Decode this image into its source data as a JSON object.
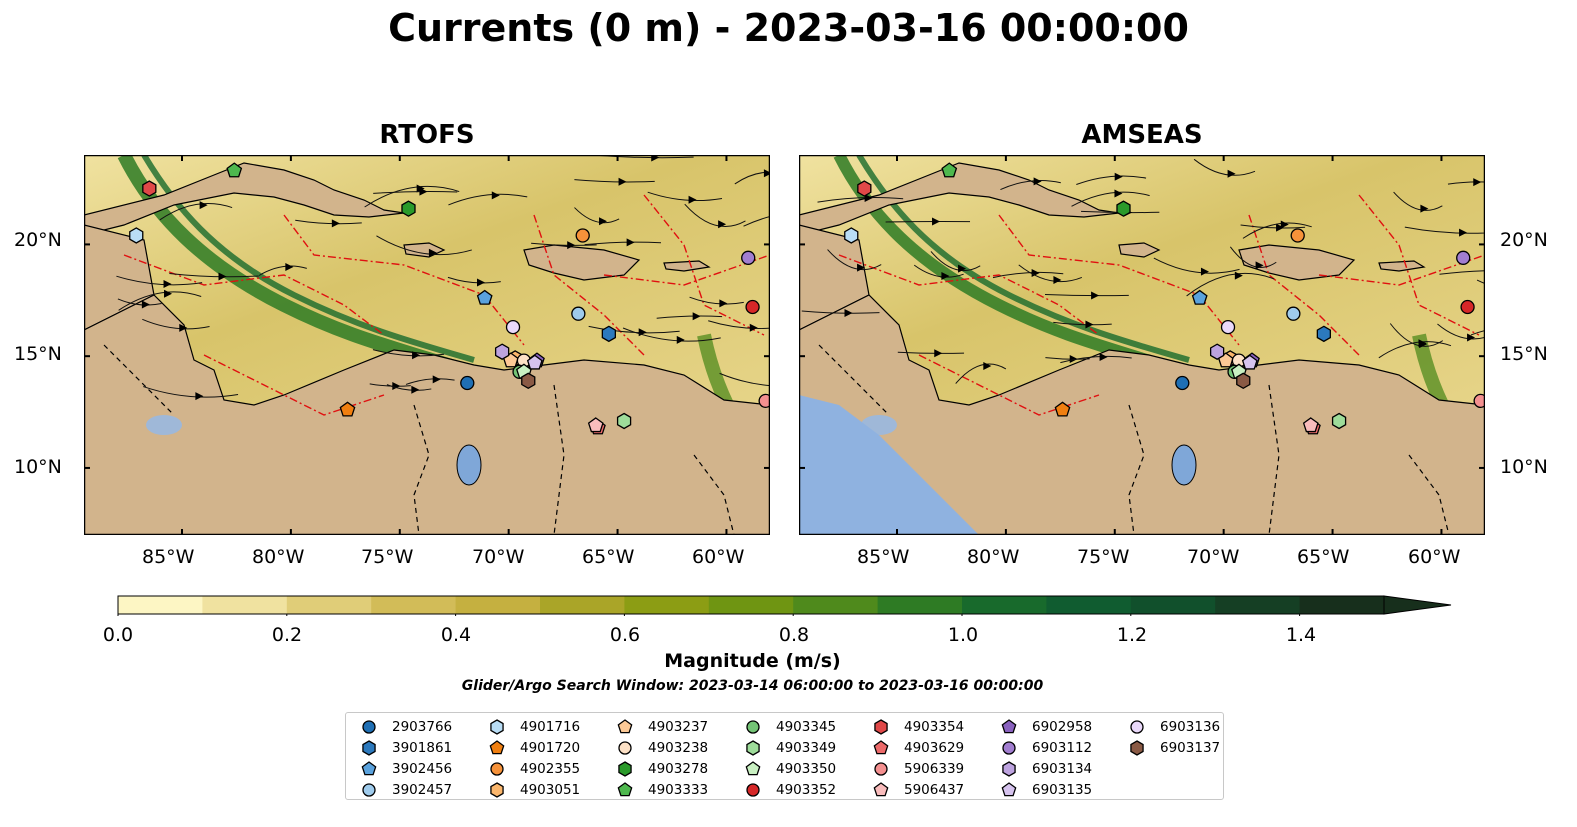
{
  "title": "Currents (0 m) - 2023-03-16 00:00:00",
  "panels": [
    {
      "title": "RTOFS"
    },
    {
      "title": "AMSEAS"
    }
  ],
  "axes": {
    "lon_ticks": [
      "85°W",
      "80°W",
      "75°W",
      "70°W",
      "65°W",
      "60°W"
    ],
    "lat_ticks": [
      "20°N",
      "15°N",
      "10°N"
    ],
    "lon_range": [
      -89.5,
      -58.0
    ],
    "lat_range": [
      7.0,
      24.0
    ]
  },
  "colorbar": {
    "label": "Magnitude (m/s)",
    "ticks": [
      "0.0",
      "0.2",
      "0.4",
      "0.6",
      "0.8",
      "1.0",
      "1.2",
      "1.4"
    ],
    "range": [
      0.0,
      1.5
    ],
    "extend": "max",
    "colors": [
      "#fdf6c4",
      "#f0e2a0",
      "#e0cd78",
      "#d2bc58",
      "#c5b040",
      "#aaa528",
      "#8c9d14",
      "#6f9512",
      "#4f8a1c",
      "#2e7b24",
      "#186a2c",
      "#105c30",
      "#11502c",
      "#153f24",
      "#172f1c"
    ]
  },
  "search_window": "Glider/Argo Search Window: 2023-03-14 06:00:00 to 2023-03-16 00:00:00",
  "legend": [
    {
      "label": "2903766",
      "marker": "circle",
      "color": "#1f6fb4"
    },
    {
      "label": "3901861",
      "marker": "hexagon",
      "color": "#2c79bd"
    },
    {
      "label": "3902456",
      "marker": "pentagon",
      "color": "#5aa2dd"
    },
    {
      "label": "3902457",
      "marker": "circle",
      "color": "#9fcbec"
    },
    {
      "label": "4901716",
      "marker": "hexagon",
      "color": "#b9ddf5"
    },
    {
      "label": "4901720",
      "marker": "pentagon",
      "color": "#f07f10"
    },
    {
      "label": "4902355",
      "marker": "circle",
      "color": "#f6923a"
    },
    {
      "label": "4903051",
      "marker": "hexagon",
      "color": "#fbb66c"
    },
    {
      "label": "4903237",
      "marker": "pentagon",
      "color": "#fcc996"
    },
    {
      "label": "4903238",
      "marker": "circle",
      "color": "#fde1c6"
    },
    {
      "label": "4903278",
      "marker": "hexagon",
      "color": "#2a9a2a"
    },
    {
      "label": "4903333",
      "marker": "pentagon",
      "color": "#4eb84e"
    },
    {
      "label": "4903345",
      "marker": "circle",
      "color": "#74c476"
    },
    {
      "label": "4903349",
      "marker": "hexagon",
      "color": "#9edc9a"
    },
    {
      "label": "4903350",
      "marker": "pentagon",
      "color": "#c9f0c2"
    },
    {
      "label": "4903352",
      "marker": "circle",
      "color": "#d62728"
    },
    {
      "label": "4903354",
      "marker": "hexagon",
      "color": "#e04848"
    },
    {
      "label": "4903629",
      "marker": "pentagon",
      "color": "#ec6a6a"
    },
    {
      "label": "5906339",
      "marker": "circle",
      "color": "#f49090"
    },
    {
      "label": "5906437",
      "marker": "pentagon",
      "color": "#f9bcbc"
    },
    {
      "label": "6902958",
      "marker": "pentagon",
      "color": "#8a62bf"
    },
    {
      "label": "6903112",
      "marker": "circle",
      "color": "#a27ed0"
    },
    {
      "label": "6903134",
      "marker": "hexagon",
      "color": "#bda3df"
    },
    {
      "label": "6903135",
      "marker": "pentagon",
      "color": "#d6c3ee"
    },
    {
      "label": "6903136",
      "marker": "circle",
      "color": "#ead9fa"
    },
    {
      "label": "6903137",
      "marker": "hexagon",
      "color": "#8a5a45"
    }
  ],
  "floats": [
    {
      "label": "2903766",
      "lon": -71.9,
      "lat": 13.8
    },
    {
      "label": "3901861",
      "lon": -65.4,
      "lat": 16.0
    },
    {
      "label": "3902456",
      "lon": -71.1,
      "lat": 17.6
    },
    {
      "label": "3902457",
      "lon": -66.8,
      "lat": 16.9
    },
    {
      "label": "4901716",
      "lon": -87.1,
      "lat": 20.4
    },
    {
      "label": "4901720",
      "lon": -77.4,
      "lat": 12.6
    },
    {
      "label": "4902355",
      "lon": -66.6,
      "lat": 20.4
    },
    {
      "label": "4903051",
      "lon": -69.7,
      "lat": 14.9
    },
    {
      "label": "4903237",
      "lon": -69.9,
      "lat": 14.8
    },
    {
      "label": "4903238",
      "lon": -69.3,
      "lat": 14.8
    },
    {
      "label": "4903278",
      "lon": -74.6,
      "lat": 21.6
    },
    {
      "label": "4903333",
      "lon": -82.6,
      "lat": 23.3
    },
    {
      "label": "4903345",
      "lon": -69.5,
      "lat": 14.3
    },
    {
      "label": "4903349",
      "lon": -64.7,
      "lat": 12.1
    },
    {
      "label": "4903350",
      "lon": -69.3,
      "lat": 14.3
    },
    {
      "label": "4903352",
      "lon": -58.8,
      "lat": 17.2
    },
    {
      "label": "4903354",
      "lon": -86.5,
      "lat": 22.5
    },
    {
      "label": "4903629",
      "lon": -65.9,
      "lat": 11.8
    },
    {
      "label": "5906339",
      "lon": -58.2,
      "lat": 13.0
    },
    {
      "label": "5906437",
      "lon": -66.0,
      "lat": 11.9
    },
    {
      "label": "6902958",
      "lon": -68.7,
      "lat": 14.8
    },
    {
      "label": "6903112",
      "lon": -59.0,
      "lat": 19.4
    },
    {
      "label": "6903134",
      "lon": -70.3,
      "lat": 15.2
    },
    {
      "label": "6903135",
      "lon": -68.8,
      "lat": 14.7
    },
    {
      "label": "6903136",
      "lon": -69.8,
      "lat": 16.3
    },
    {
      "label": "6903137",
      "lon": -69.1,
      "lat": 13.9
    }
  ]
}
